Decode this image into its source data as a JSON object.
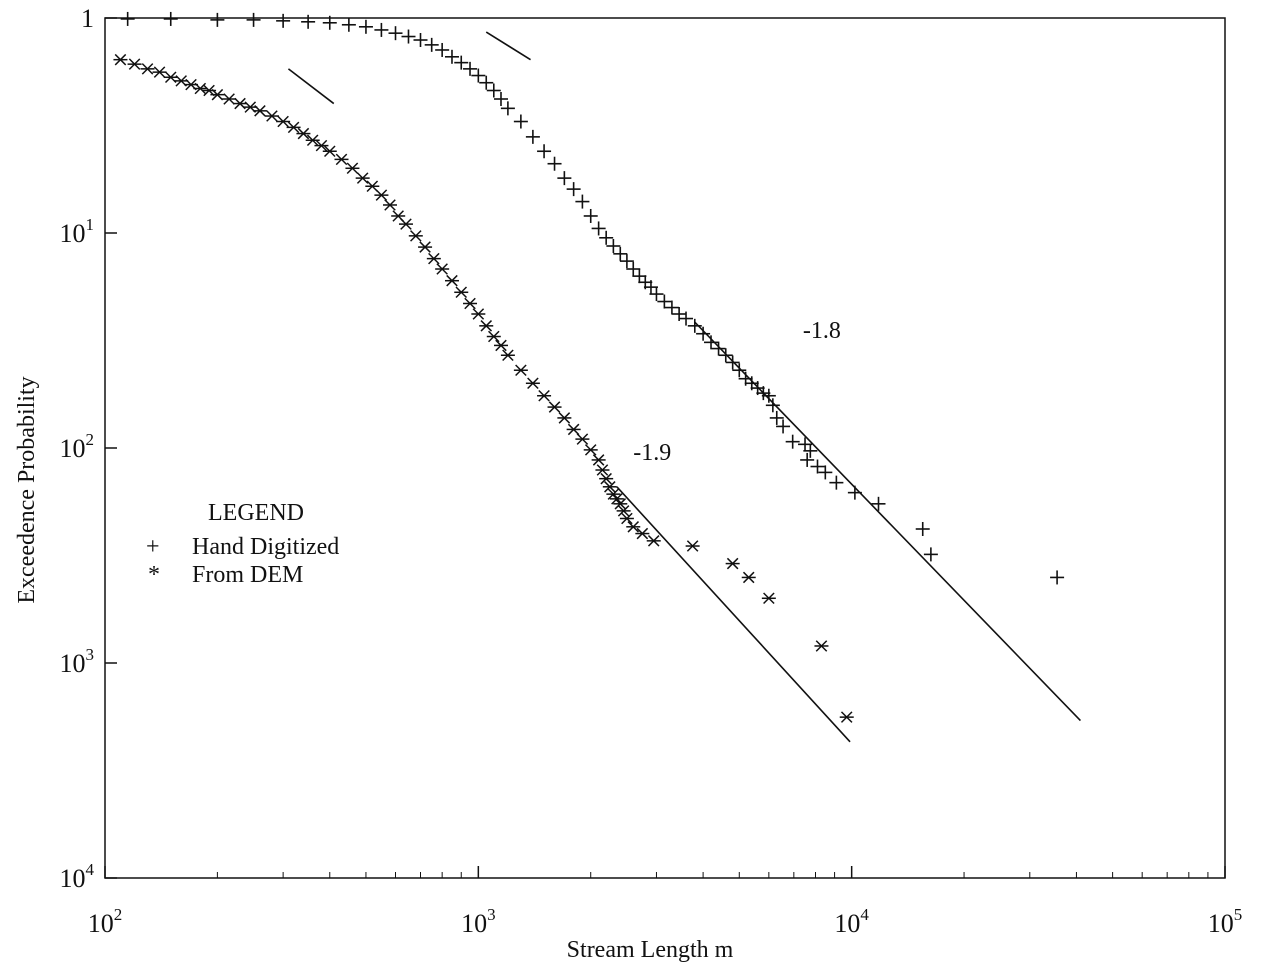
{
  "chart_data": {
    "type": "scatter",
    "xscale": "log",
    "yscale": "log",
    "xlim": [
      100,
      100000
    ],
    "ylim": [
      0.0001,
      1
    ],
    "xlabel": "Stream Length  m",
    "ylabel": "Exceedence Probability",
    "x_ticks": [
      {
        "value": 100,
        "base": "10",
        "exp": "2"
      },
      {
        "value": 1000,
        "base": "10",
        "exp": "3"
      },
      {
        "value": 10000,
        "base": "10",
        "exp": "4"
      },
      {
        "value": 100000,
        "base": "10",
        "exp": "5"
      }
    ],
    "y_ticks": [
      {
        "value": 1,
        "base": "1",
        "exp": ""
      },
      {
        "value": 0.1,
        "base": "10",
        "exp": "1"
      },
      {
        "value": 0.01,
        "base": "10",
        "exp": "2"
      },
      {
        "value": 0.001,
        "base": "10",
        "exp": "3"
      },
      {
        "value": 0.0001,
        "base": "10",
        "exp": "4"
      }
    ],
    "legend": {
      "title": "LEGEND",
      "placement": "left-middle",
      "entries": [
        {
          "marker": "+",
          "label": "Hand Digitized",
          "series": "hand"
        },
        {
          "marker": "*",
          "label": "From DEM",
          "series": "dem"
        }
      ]
    },
    "series": [
      {
        "key": "hand",
        "marker": "+",
        "x": [
          115,
          150,
          200,
          250,
          300,
          350,
          400,
          450,
          500,
          550,
          600,
          650,
          700,
          750,
          800,
          850,
          900,
          950,
          1000,
          1050,
          1100,
          1150,
          1200,
          1300,
          1400,
          1500,
          1600,
          1700,
          1800,
          1900,
          2000,
          2100,
          2200,
          2300,
          2400,
          2500,
          2600,
          2700,
          2800,
          2900,
          3000,
          3150,
          3300,
          3450,
          3600,
          3800,
          4000,
          4200,
          4400,
          4600,
          4800,
          5000,
          5200,
          5400,
          5600,
          5800,
          6000,
          6150,
          6300,
          6550,
          6950,
          7600,
          7500,
          7750,
          8100,
          8500,
          9100,
          10200,
          11800,
          15500,
          16300,
          35500
        ],
        "y": [
          0.99,
          0.99,
          0.98,
          0.98,
          0.97,
          0.96,
          0.95,
          0.93,
          0.91,
          0.88,
          0.85,
          0.82,
          0.79,
          0.75,
          0.71,
          0.66,
          0.62,
          0.58,
          0.54,
          0.5,
          0.46,
          0.42,
          0.38,
          0.33,
          0.28,
          0.24,
          0.21,
          0.18,
          0.16,
          0.14,
          0.12,
          0.105,
          0.095,
          0.087,
          0.08,
          0.074,
          0.068,
          0.063,
          0.059,
          0.056,
          0.052,
          0.048,
          0.045,
          0.042,
          0.04,
          0.037,
          0.034,
          0.031,
          0.029,
          0.027,
          0.025,
          0.023,
          0.021,
          0.02,
          0.019,
          0.018,
          0.0175,
          0.0158,
          0.0138,
          0.0126,
          0.0107,
          0.0088,
          0.0104,
          0.0097,
          0.0082,
          0.0077,
          0.0069,
          0.0062,
          0.0055,
          0.0042,
          0.0032,
          0.0025
        ]
      },
      {
        "key": "dem",
        "marker": "*",
        "x": [
          110,
          120,
          130,
          140,
          150,
          160,
          170,
          180,
          190,
          200,
          215,
          230,
          245,
          260,
          280,
          300,
          320,
          340,
          360,
          380,
          400,
          430,
          460,
          490,
          520,
          550,
          580,
          610,
          640,
          680,
          720,
          760,
          800,
          850,
          900,
          950,
          1000,
          1050,
          1100,
          1150,
          1200,
          1300,
          1400,
          1500,
          1600,
          1700,
          1800,
          1900,
          2000,
          2100,
          2150,
          2200,
          2250,
          2300,
          2350,
          2400,
          2450,
          2500,
          2600,
          2750,
          2950,
          3750,
          4800,
          5300,
          6000,
          8300,
          9700
        ],
        "y": [
          0.64,
          0.61,
          0.58,
          0.56,
          0.53,
          0.51,
          0.49,
          0.47,
          0.46,
          0.44,
          0.42,
          0.4,
          0.385,
          0.37,
          0.35,
          0.33,
          0.31,
          0.29,
          0.27,
          0.255,
          0.24,
          0.22,
          0.2,
          0.18,
          0.165,
          0.15,
          0.135,
          0.12,
          0.11,
          0.097,
          0.086,
          0.076,
          0.068,
          0.06,
          0.053,
          0.047,
          0.042,
          0.037,
          0.033,
          0.03,
          0.027,
          0.023,
          0.02,
          0.0175,
          0.0155,
          0.0138,
          0.0122,
          0.011,
          0.0098,
          0.0088,
          0.0079,
          0.0072,
          0.0066,
          0.0061,
          0.0058,
          0.0055,
          0.0051,
          0.0047,
          0.0043,
          0.004,
          0.0037,
          0.0035,
          0.0029,
          0.0025,
          0.002,
          0.0012,
          0.00056
        ]
      }
    ],
    "fit_lines": [
      {
        "series": "hand",
        "slope_label": "-1.8",
        "label_at": [
          7400,
          0.0325
        ],
        "x": [
          3800,
          41000
        ],
        "y": [
          0.0385,
          0.00054
        ]
      },
      {
        "series": "dem",
        "slope_label": "-1.9",
        "label_at": [
          2600,
          0.0088
        ],
        "x": [
          2350,
          9900
        ],
        "y": [
          0.0066,
          0.00043
        ]
      }
    ],
    "guide_segments": [
      {
        "series": "hand",
        "x": [
          1050,
          1380
        ],
        "y": [
          0.86,
          0.64
        ]
      },
      {
        "series": "dem",
        "x": [
          310,
          410
        ],
        "y": [
          0.58,
          0.4
        ]
      }
    ]
  }
}
